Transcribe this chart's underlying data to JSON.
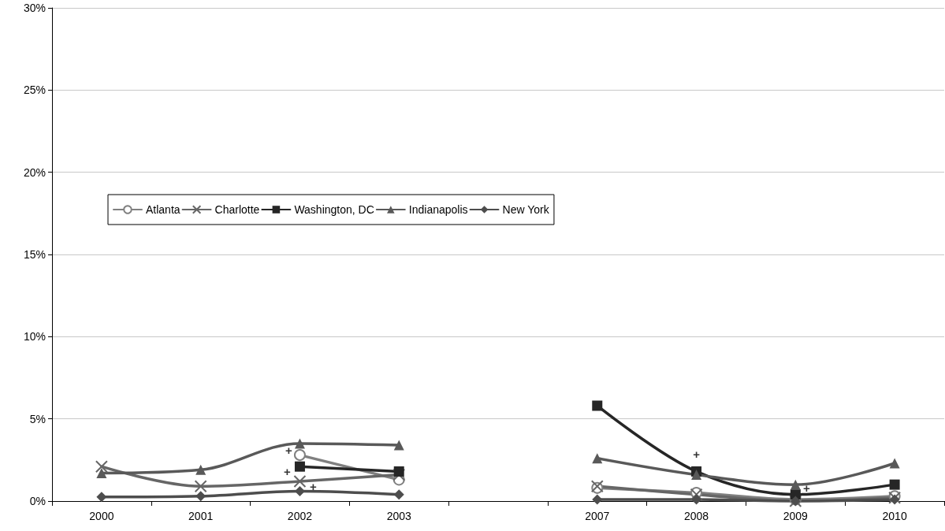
{
  "chart_data": {
    "type": "line",
    "categories": [
      "2000",
      "2001",
      "2002",
      "2003",
      null,
      "2007",
      "2008",
      "2009",
      "2010"
    ],
    "series": [
      {
        "name": "Atlanta",
        "color": "#808080",
        "marker": "circle",
        "values": [
          null,
          null,
          2.8,
          1.3,
          null,
          0.8,
          0.5,
          0.1,
          0.3
        ]
      },
      {
        "name": "Charlotte",
        "color": "#666666",
        "marker": "cross",
        "values": [
          2.1,
          0.9,
          1.2,
          1.6,
          null,
          0.9,
          0.4,
          0.0,
          0.2
        ]
      },
      {
        "name": "Washington, DC",
        "color": "#262626",
        "marker": "square",
        "values": [
          null,
          null,
          2.1,
          1.8,
          null,
          5.8,
          1.8,
          0.4,
          1.0
        ]
      },
      {
        "name": "Indianapolis",
        "color": "#595959",
        "marker": "triangle",
        "values": [
          1.7,
          1.9,
          3.5,
          3.4,
          null,
          2.6,
          1.6,
          1.0,
          2.3
        ]
      },
      {
        "name": "New York",
        "color": "#4d4d4d",
        "marker": "diamond",
        "values": [
          0.25,
          0.3,
          0.6,
          0.4,
          null,
          0.1,
          0.1,
          0.0,
          0.1
        ]
      }
    ],
    "ylim": [
      0,
      30
    ],
    "yticks": [
      {
        "value": 0,
        "label": "0%"
      },
      {
        "value": 5,
        "label": "5%"
      },
      {
        "value": 10,
        "label": "10%"
      },
      {
        "value": 15,
        "label": "15%"
      },
      {
        "value": 20,
        "label": "20%"
      },
      {
        "value": 25,
        "label": "25%"
      },
      {
        "value": 30,
        "label": "30%"
      }
    ],
    "grid": "y",
    "legend": "left",
    "line_style": "solid",
    "annotations": [
      {
        "text": "+",
        "x": "2002",
        "y": 2.8
      },
      {
        "text": "+",
        "x": "2002",
        "y": 1.2
      },
      {
        "text": "+",
        "x": "2002",
        "y": 0.6
      },
      {
        "text": "+",
        "x": "2008",
        "y": 1.8
      },
      {
        "text": "+",
        "x": "2009",
        "y": 0.4
      }
    ]
  }
}
